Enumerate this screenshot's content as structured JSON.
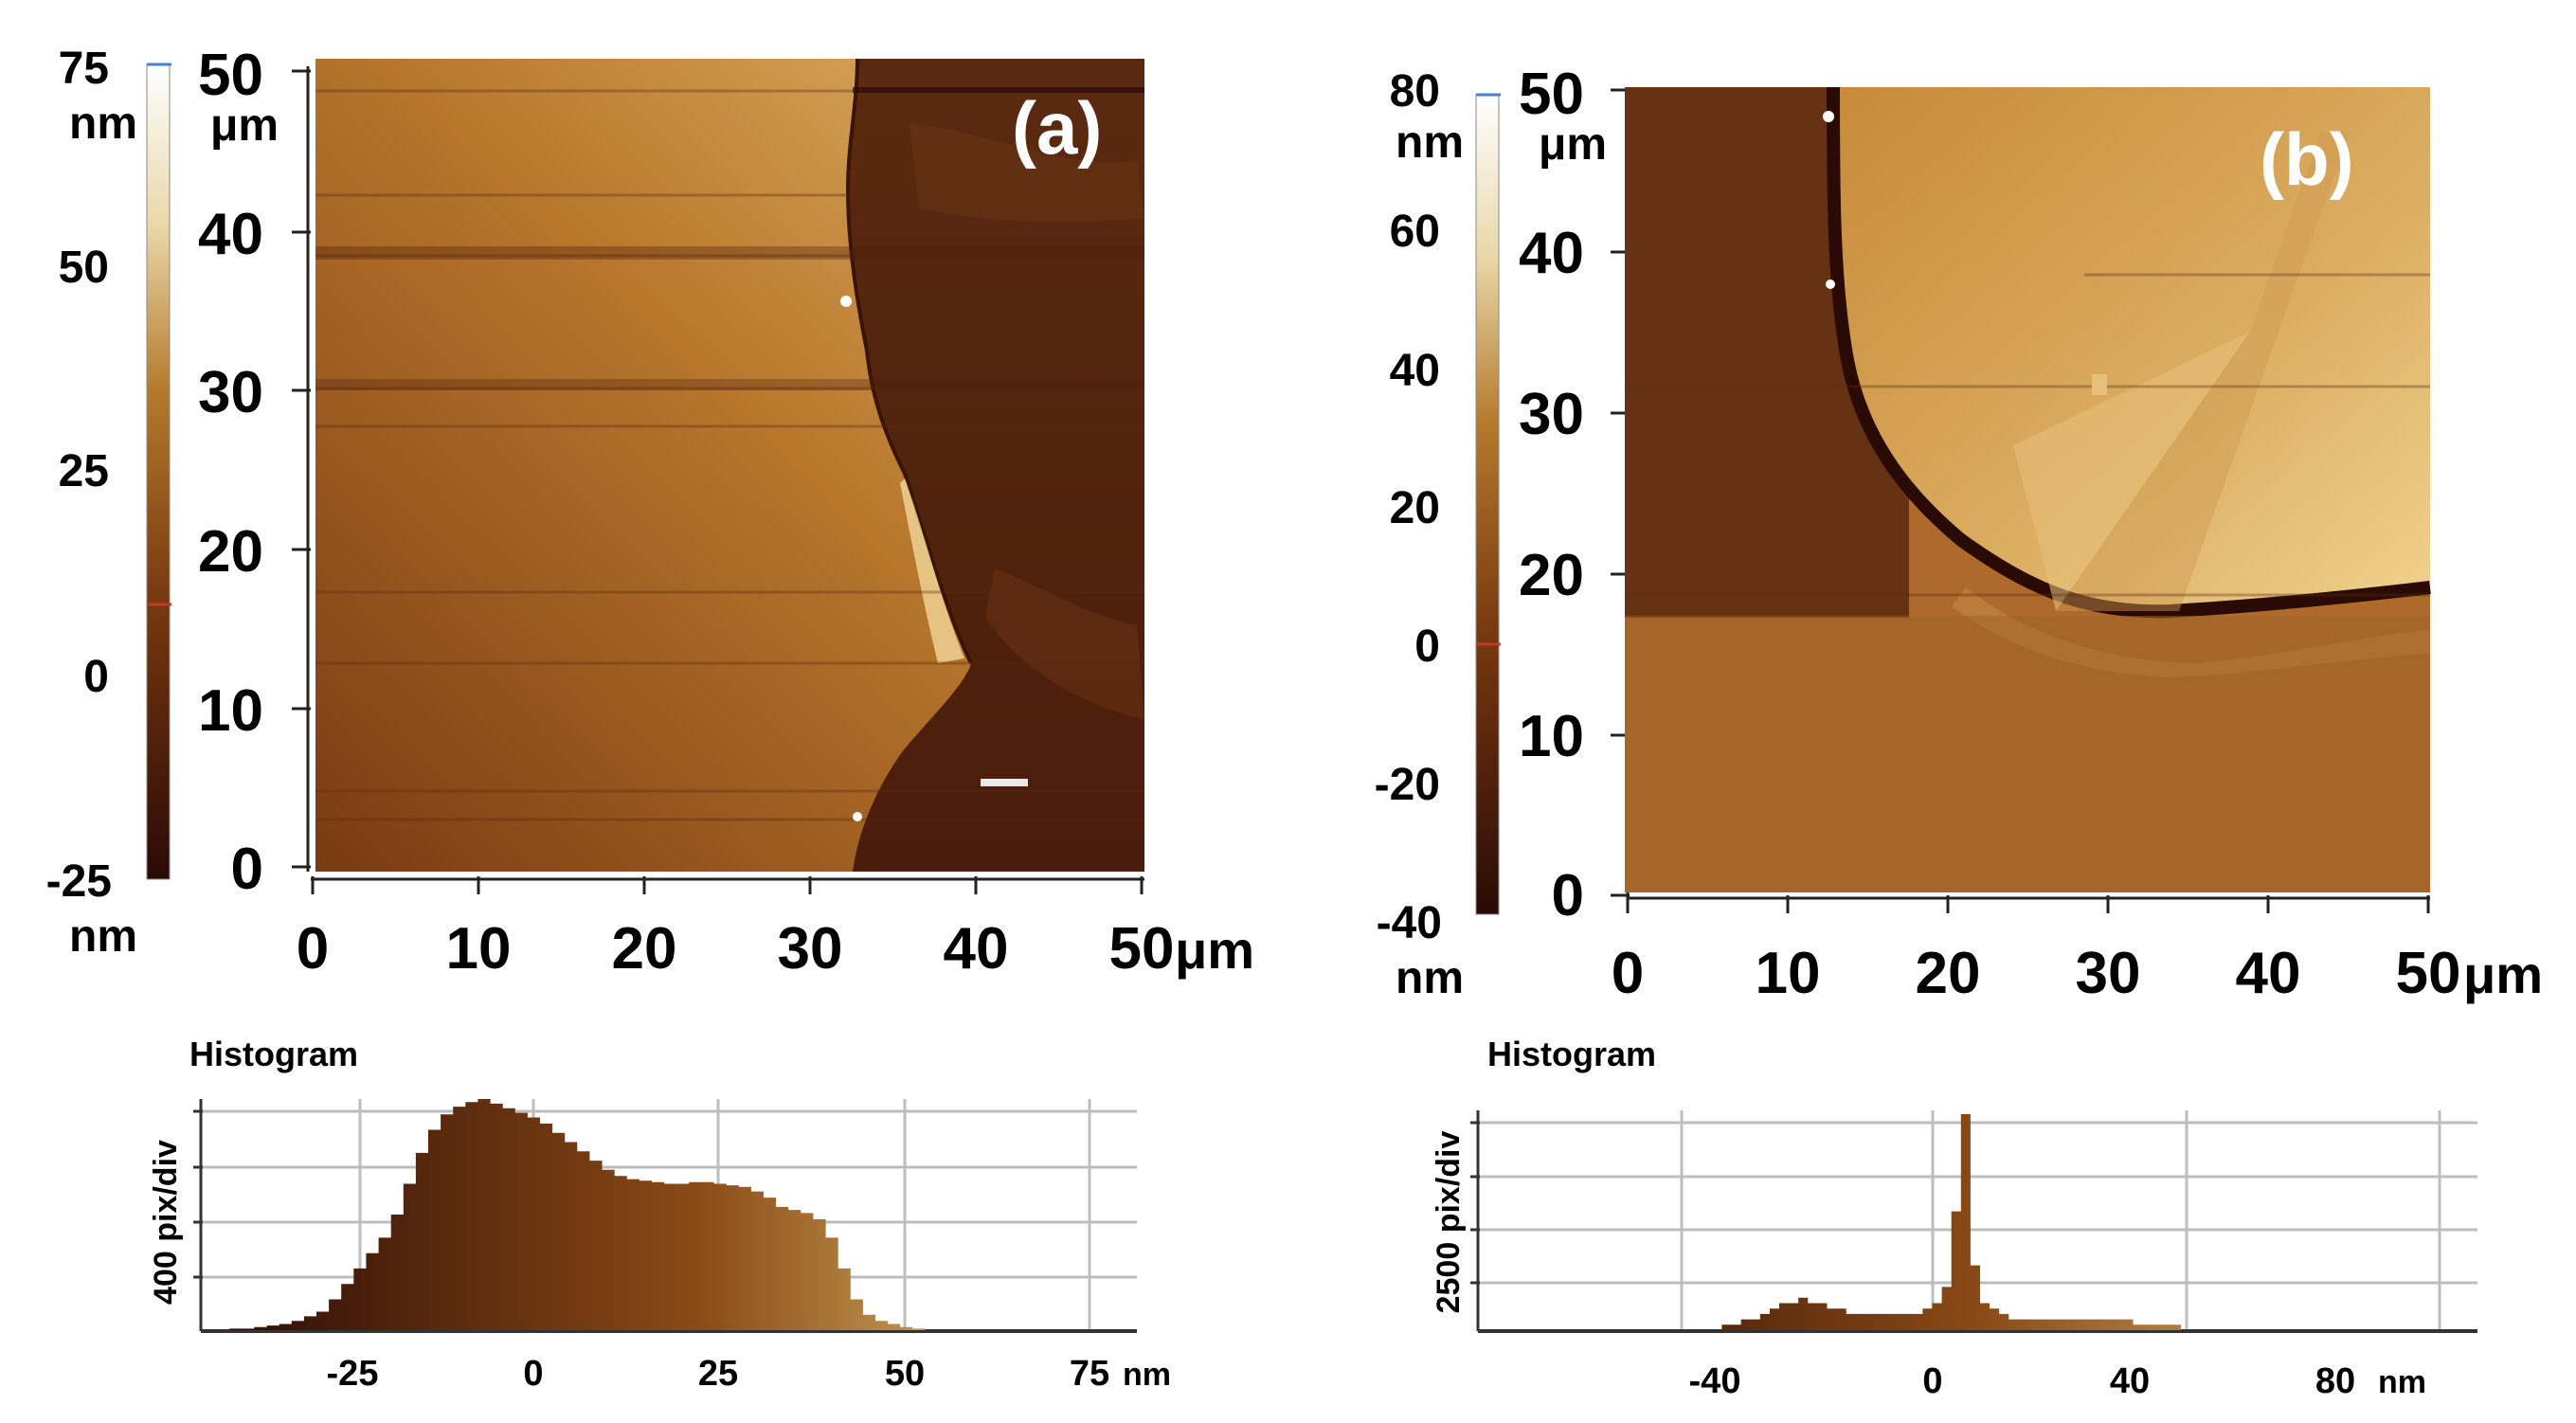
{
  "palette": {
    "dark": "#2a0a05",
    "mid": "#a0601c",
    "light": "#f7ecce",
    "text": "#1a1a1a",
    "grid": "#bdbdbd"
  },
  "panels": [
    {
      "label": "(a)",
      "colorbar": {
        "top_label": "75",
        "top_unit": "nm",
        "ticks": [
          "50",
          "25",
          "0"
        ],
        "bottom_label": "-25",
        "bottom_unit": "nm"
      },
      "y_axis": {
        "ticks": [
          "50",
          "40",
          "30",
          "20",
          "10",
          "0"
        ],
        "unit": "μm"
      },
      "x_axis": {
        "ticks": [
          "0",
          "10",
          "20",
          "30",
          "40",
          "50"
        ],
        "unit": "μm"
      }
    },
    {
      "label": "(b)",
      "colorbar": {
        "top_label": "80",
        "top_unit": "nm",
        "ticks": [
          "60",
          "40",
          "20",
          "0",
          "-20"
        ],
        "bottom_label": "-40",
        "bottom_unit": "nm"
      },
      "y_axis": {
        "ticks": [
          "50",
          "40",
          "30",
          "20",
          "10",
          "0"
        ],
        "unit": "μm"
      },
      "x_axis": {
        "ticks": [
          "0",
          "10",
          "20",
          "30",
          "40",
          "50"
        ],
        "unit": "μm"
      }
    }
  ],
  "histograms": [
    {
      "title": "Histogram",
      "ylabel": "400 pix/div",
      "xticks": [
        "-25",
        "0",
        "25",
        "50",
        "75"
      ],
      "unit": "nm",
      "profile": [
        0,
        0,
        1,
        1,
        2,
        3,
        4,
        6,
        9,
        12,
        20,
        30,
        40,
        50,
        60,
        75,
        95,
        115,
        130,
        140,
        145,
        148,
        150,
        147,
        144,
        141,
        138,
        134,
        128,
        122,
        116,
        110,
        104,
        100,
        98,
        97,
        96,
        95,
        95,
        96,
        96,
        95,
        94,
        93,
        90,
        86,
        80,
        78,
        76,
        72,
        60,
        40,
        20,
        10,
        6,
        4,
        2,
        1,
        0,
        0,
        0,
        0,
        0,
        0,
        0,
        0,
        0,
        0,
        0,
        0,
        0,
        0
      ]
    },
    {
      "title": "Histogram",
      "ylabel": "2500 pix/div",
      "xticks": [
        "-40",
        "0",
        "40",
        "80"
      ],
      "unit": "nm",
      "profile": [
        0,
        0,
        0,
        0,
        0,
        0,
        0,
        0,
        0,
        0,
        0,
        0,
        0,
        0,
        0,
        0,
        0,
        0,
        0,
        0,
        0,
        0,
        0,
        0,
        0,
        1,
        1,
        2,
        2,
        3,
        4,
        5,
        5,
        6,
        5,
        5,
        4,
        4,
        3,
        3,
        3,
        3,
        3,
        3,
        3,
        3,
        4,
        5,
        8,
        22,
        40,
        12,
        5,
        4,
        3,
        2,
        2,
        2,
        2,
        2,
        2,
        2,
        2,
        2,
        2,
        2,
        2,
        2,
        1,
        1,
        1,
        1,
        1,
        0,
        0,
        0,
        0,
        0,
        0,
        0,
        0,
        0,
        0,
        0,
        0,
        0,
        0,
        0,
        0,
        0,
        0,
        0,
        0,
        0,
        0,
        0,
        0,
        0,
        0,
        0,
        0,
        0,
        0,
        0
      ]
    }
  ]
}
